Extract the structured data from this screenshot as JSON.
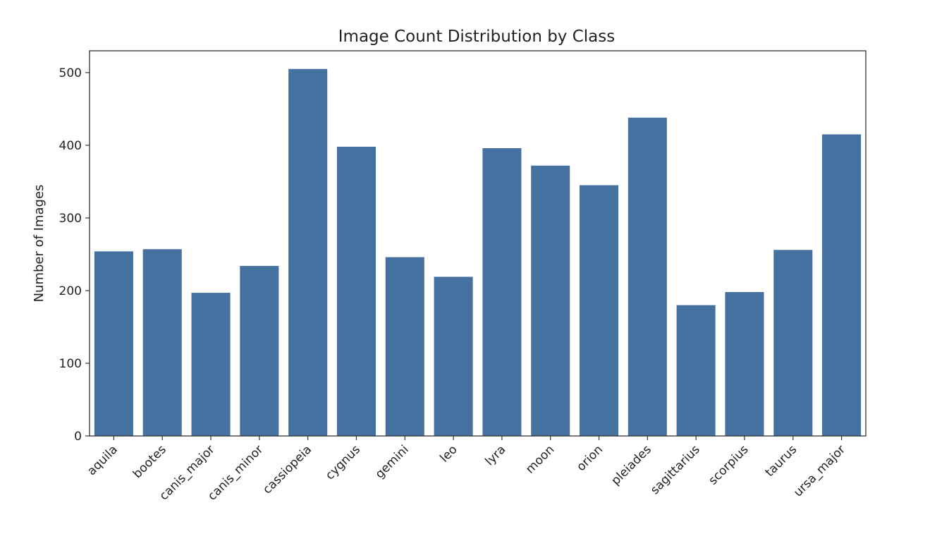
{
  "chart_data": {
    "type": "bar",
    "title": "Image Count Distribution by Class",
    "xlabel": "",
    "ylabel": "Number of Images",
    "categories": [
      "aquila",
      "bootes",
      "canis_major",
      "canis_minor",
      "cassiopeia",
      "cygnus",
      "gemini",
      "leo",
      "lyra",
      "moon",
      "orion",
      "pleiades",
      "sagittarius",
      "scorpius",
      "taurus",
      "ursa_major"
    ],
    "values": [
      254,
      257,
      197,
      234,
      505,
      398,
      246,
      219,
      396,
      372,
      345,
      438,
      180,
      198,
      256,
      415
    ],
    "ylim": [
      0,
      530
    ],
    "yticks": [
      0,
      100,
      200,
      300,
      400,
      500
    ],
    "grid": false,
    "bar_color": "#4471a0"
  }
}
